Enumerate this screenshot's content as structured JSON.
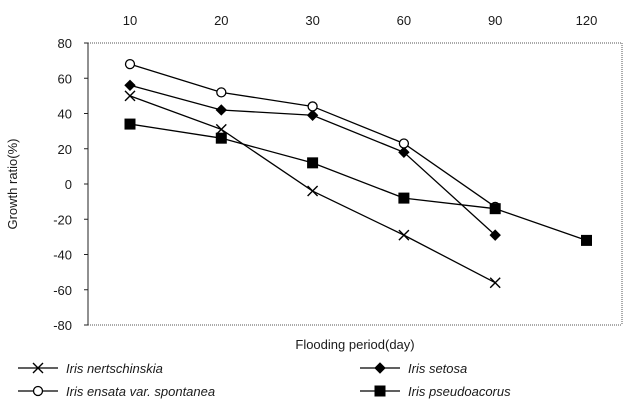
{
  "chart_data": {
    "type": "line",
    "title": "",
    "xlabel": "Flooding period(day)",
    "ylabel": "Growth ratio(%)",
    "categories": [
      "10",
      "20",
      "30",
      "60",
      "90",
      "120"
    ],
    "ylim": [
      -80,
      80
    ],
    "yticks": [
      "80",
      "60",
      "40",
      "20",
      "0",
      "-20",
      "-40",
      "-60",
      "-80"
    ],
    "grid": false,
    "legend_position": "bottom",
    "series": [
      {
        "name": "Iris nertschinskia",
        "marker": "x",
        "color": "#000000",
        "values": [
          50,
          31,
          -4,
          -29,
          -56,
          null
        ]
      },
      {
        "name": "Iris setosa",
        "marker": "filled-diamond",
        "color": "#000000",
        "values": [
          56,
          42,
          39,
          18,
          -29,
          null
        ]
      },
      {
        "name": "Iris ensata var. spontanea",
        "marker": "open-circle",
        "color": "#000000",
        "values": [
          68,
          52,
          44,
          23,
          -13,
          null
        ]
      },
      {
        "name": "Iris pseudoacorus",
        "marker": "filled-square",
        "color": "#000000",
        "values": [
          34,
          26,
          12,
          -8,
          -14,
          -32
        ]
      }
    ]
  }
}
